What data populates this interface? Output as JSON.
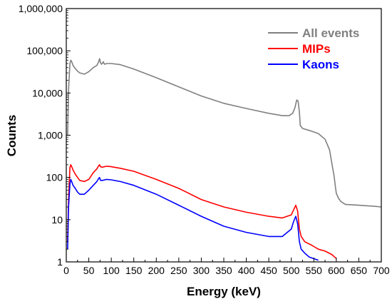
{
  "chart_data": {
    "type": "line",
    "xlabel": "Energy (keV)",
    "ylabel": "Counts",
    "xlim": [
      0,
      700
    ],
    "ylim": [
      1,
      1000000
    ],
    "yscale": "log",
    "grid": false,
    "legend_position": "top-right",
    "x_ticks": [
      0,
      50,
      100,
      150,
      200,
      250,
      300,
      350,
      400,
      450,
      500,
      550,
      600,
      650,
      700
    ],
    "x_tick_labels": [
      "0",
      "50",
      "100",
      "150",
      "200",
      "250",
      "300",
      "350",
      "400",
      "450",
      "500",
      "550",
      "600",
      "650",
      "700"
    ],
    "y_ticks": [
      1,
      10,
      100,
      1000,
      10000,
      100000,
      1000000
    ],
    "y_tick_labels": [
      "1",
      "10",
      "100",
      "1,000",
      "10,000",
      "100,000",
      "1,000,000"
    ],
    "series": [
      {
        "name": "All events",
        "color": "#808080",
        "x": [
          3,
          5,
          8,
          10,
          12,
          15,
          20,
          25,
          30,
          40,
          50,
          60,
          68,
          72,
          74,
          76,
          78,
          80,
          82,
          85,
          90,
          100,
          120,
          150,
          200,
          250,
          300,
          350,
          400,
          450,
          480,
          495,
          503,
          508,
          512,
          515,
          518,
          520,
          525,
          540,
          560,
          575,
          585,
          590,
          595,
          598,
          600,
          605,
          610,
          620,
          650,
          680,
          700
        ],
        "y": [
          1000,
          12000,
          50000,
          60000,
          55000,
          45000,
          38000,
          33000,
          30000,
          28000,
          32000,
          40000,
          45000,
          55000,
          65000,
          52000,
          48000,
          50000,
          55000,
          48000,
          50000,
          50000,
          47000,
          37000,
          23000,
          14000,
          8500,
          5700,
          4300,
          3300,
          2900,
          2900,
          3300,
          4500,
          6800,
          6500,
          3500,
          1700,
          1450,
          1300,
          1100,
          800,
          450,
          220,
          110,
          60,
          42,
          32,
          27,
          23,
          22,
          21,
          20
        ]
      },
      {
        "name": "MIPs",
        "color": "#ff0000",
        "x": [
          3,
          5,
          8,
          10,
          12,
          15,
          20,
          25,
          30,
          40,
          50,
          60,
          68,
          72,
          74,
          76,
          80,
          90,
          100,
          120,
          150,
          200,
          250,
          300,
          350,
          400,
          450,
          480,
          500,
          505,
          510,
          514,
          518,
          522,
          530,
          545,
          560,
          575,
          590,
          600
        ],
        "y": [
          3,
          30,
          170,
          200,
          180,
          150,
          120,
          100,
          85,
          80,
          90,
          130,
          160,
          190,
          200,
          180,
          175,
          185,
          180,
          165,
          140,
          90,
          55,
          30,
          20,
          15,
          12,
          11,
          13,
          17,
          22,
          16,
          6,
          4,
          3,
          2.5,
          2,
          1.8,
          1.5,
          1.2
        ]
      },
      {
        "name": "Kaons",
        "color": "#0000ff",
        "x": [
          3,
          5,
          8,
          10,
          12,
          15,
          20,
          25,
          30,
          40,
          50,
          60,
          68,
          72,
          74,
          76,
          80,
          90,
          100,
          120,
          150,
          200,
          250,
          300,
          350,
          400,
          450,
          480,
          500,
          505,
          510,
          514,
          518,
          522,
          530,
          540,
          560
        ],
        "y": [
          2,
          20,
          70,
          90,
          80,
          65,
          55,
          45,
          40,
          40,
          50,
          65,
          80,
          95,
          100,
          85,
          85,
          90,
          88,
          80,
          65,
          40,
          22,
          12,
          7,
          5,
          4,
          4,
          6,
          9,
          12,
          8,
          3,
          2,
          1.6,
          1.3,
          1.1
        ]
      }
    ]
  }
}
